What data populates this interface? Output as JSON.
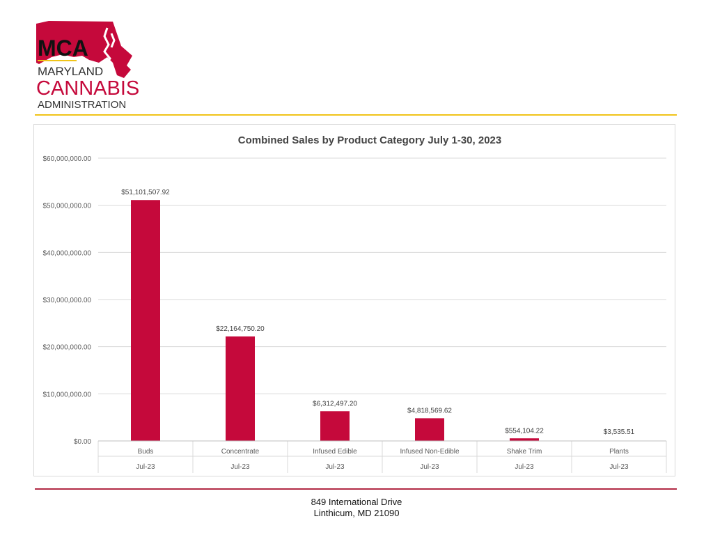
{
  "logo": {
    "abbr": "MCA",
    "line1": "MARYLAND",
    "line2": "CANNABIS",
    "line3": "ADMINISTRATION",
    "brand_red": "#c5093b",
    "accent_yellow": "#f0c419"
  },
  "chart_data": {
    "type": "bar",
    "title": "Combined Sales by Product Category July 1-30, 2023",
    "xlabel": "",
    "ylabel": "",
    "categories": [
      "Buds",
      "Concentrate",
      "Infused Edible",
      "Infused Non-Edible",
      "Shake Trim",
      "Plants"
    ],
    "sub_categories": [
      "Jul-23",
      "Jul-23",
      "Jul-23",
      "Jul-23",
      "Jul-23",
      "Jul-23"
    ],
    "values": [
      51101507.92,
      22164750.2,
      6312497.2,
      4818569.62,
      554104.22,
      3535.51
    ],
    "data_labels": [
      "$51,101,507.92",
      "$22,164,750.20",
      "$6,312,497.20",
      "$4,818,569.62",
      "$554,104.22",
      "$3,535.51"
    ],
    "ylim": [
      0,
      60000000
    ],
    "yticks": [
      0,
      10000000,
      20000000,
      30000000,
      40000000,
      50000000,
      60000000
    ],
    "ytick_labels": [
      "$0.00",
      "$10,000,000.00",
      "$20,000,000.00",
      "$30,000,000.00",
      "$40,000,000.00",
      "$50,000,000.00",
      "$60,000,000.00"
    ],
    "grid": true,
    "legend": "none",
    "bar_color": "#c5093b"
  },
  "footer": {
    "address_line1": "849 International Drive",
    "address_line2": "Linthicum, MD 21090"
  }
}
